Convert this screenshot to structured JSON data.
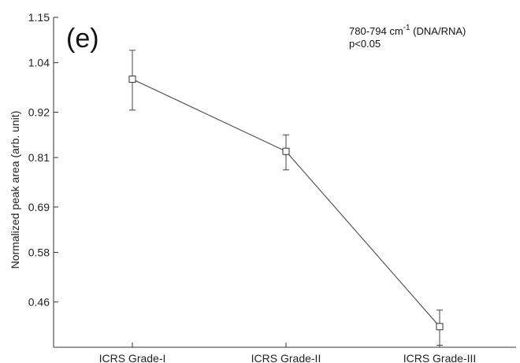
{
  "chart_data": {
    "type": "line",
    "panel_label": "(e)",
    "annotation_line1_main": "780-794 cm",
    "annotation_line1_sup": "-1",
    "annotation_line1_tail": " (DNA/RNA)",
    "annotation_line2": "p<0.05",
    "ylabel": "Normalized peak area (arb. unit)",
    "xlabel": "",
    "categories": [
      "ICRS Grade-I",
      "ICRS Grade-II",
      "ICRS Grade-III"
    ],
    "ylim": [
      0.35,
      1.15
    ],
    "yticks": [
      0.46,
      0.58,
      0.69,
      0.81,
      0.92,
      1.04,
      1.15
    ],
    "ytick_labels": [
      "0.46",
      "0.58",
      "0.69",
      "0.81",
      "0.92",
      "1.04",
      "1.15"
    ],
    "series": [
      {
        "values": [
          1.0,
          0.825,
          0.4
        ],
        "err_upper": [
          1.07,
          0.865,
          0.44
        ],
        "err_lower": [
          0.925,
          0.78,
          0.355
        ],
        "marker": "square",
        "color": "#555555"
      }
    ],
    "grid": false,
    "legend": "none"
  }
}
